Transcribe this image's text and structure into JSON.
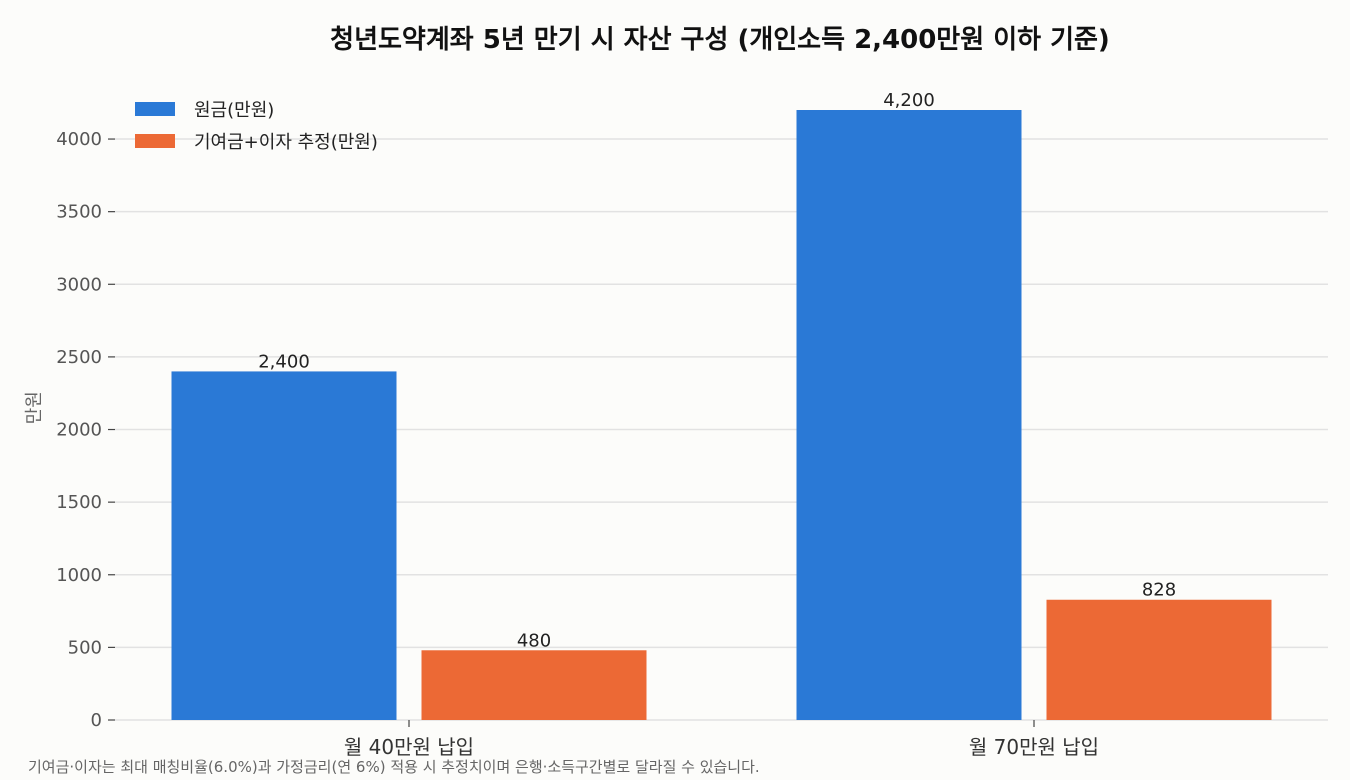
{
  "chart_data": {
    "type": "bar",
    "title": "청년도약계좌 5년 만기 시 자산 구성 (개인소득 2,400만원 이하 기준)",
    "xlabel": "",
    "ylabel": "만원",
    "categories": [
      "월 40만원 납입",
      "월 70만원 납입"
    ],
    "series": [
      {
        "name": "원금(만원)",
        "values": [
          2400,
          4200
        ],
        "color": "#2a79d6"
      },
      {
        "name": "기여금+이자 추정(만원)",
        "values": [
          480,
          828
        ],
        "color": "#ec6935"
      }
    ],
    "data_labels": [
      [
        "2,400",
        "4,200"
      ],
      [
        "480",
        "828"
      ]
    ],
    "ylim": [
      0,
      4300
    ],
    "yticks": [
      0,
      500,
      1000,
      1500,
      2000,
      2500,
      3000,
      3500,
      4000
    ],
    "grid": true,
    "legend_position": "top-left"
  },
  "footnote": "기여금·이자는 최대 매칭비율(6.0%)과 가정금리(연 6%) 적용 시 추정치이며 은행·소득구간별로 달라질 수 있습니다."
}
